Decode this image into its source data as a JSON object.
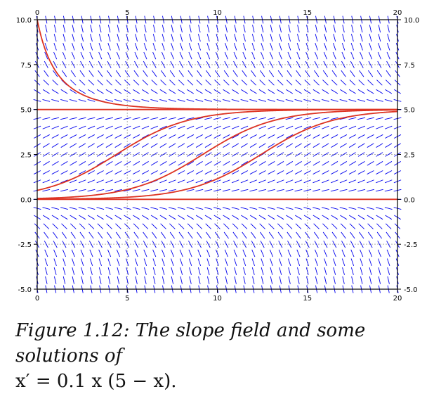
{
  "chart_data": {
    "type": "line",
    "title": "",
    "xlabel": "",
    "ylabel": "",
    "xlim": [
      0,
      20
    ],
    "ylim": [
      -5,
      10
    ],
    "x_ticks": [
      "0",
      "5",
      "10",
      "15",
      "20"
    ],
    "y_ticks": [
      "10.0",
      "7.5",
      "5.0",
      "2.5",
      "0.0",
      "-2.5",
      "-5.0"
    ],
    "grid": true,
    "slope_field": {
      "equation": "x' = 0.1 x (5 - x)",
      "color": "#0000ee"
    },
    "solution_color": "#dd3322",
    "solutions": [
      {
        "t0": 0,
        "x0": 10
      },
      {
        "t0": 0,
        "x0": 5
      },
      {
        "t0": 0,
        "x0": 0.5
      },
      {
        "t0": 0,
        "x0": 0.05
      },
      {
        "t0": 0,
        "x0": 0.01
      },
      {
        "t0": 0,
        "x0": 0
      },
      {
        "t0": 0,
        "x0": -0.05
      },
      {
        "t0": 0,
        "x0": -0.01
      },
      {
        "t0": 0,
        "x0": -0.003
      }
    ]
  },
  "caption": {
    "label": "Figure 1.12:",
    "text": " The slope field and some solutions of",
    "equation": "x′ = 0.1 x (5 − x)."
  }
}
